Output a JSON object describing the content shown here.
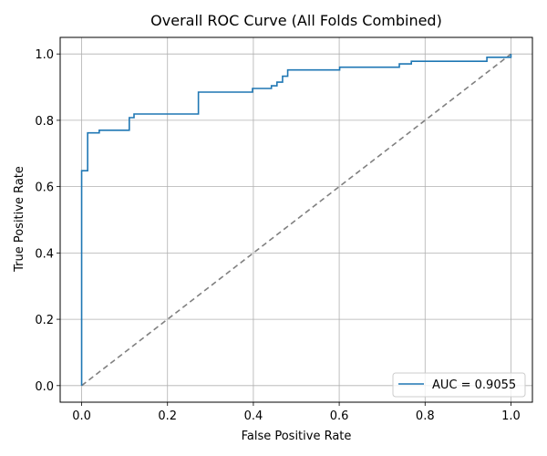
{
  "chart_data": {
    "type": "line",
    "title": "Overall ROC Curve (All Folds Combined)",
    "xlabel": "False Positive Rate",
    "ylabel": "True Positive Rate",
    "xlim": [
      -0.05,
      1.05
    ],
    "ylim": [
      -0.05,
      1.05
    ],
    "xticks": [
      0.0,
      0.2,
      0.4,
      0.6,
      0.8,
      1.0
    ],
    "yticks": [
      0.0,
      0.2,
      0.4,
      0.6,
      0.8,
      1.0
    ],
    "xtick_labels": [
      "0.0",
      "0.2",
      "0.4",
      "0.6",
      "0.8",
      "1.0"
    ],
    "ytick_labels": [
      "0.0",
      "0.2",
      "0.4",
      "0.6",
      "0.8",
      "1.0"
    ],
    "grid": true,
    "legend_position": "lower right",
    "series": [
      {
        "name": "AUC = 0.9055",
        "color": "#1f77b4",
        "style": "solid",
        "x": [
          0.0,
          0.0,
          0.007,
          0.007,
          0.014,
          0.014,
          0.041,
          0.041,
          0.111,
          0.111,
          0.122,
          0.122,
          0.272,
          0.272,
          0.398,
          0.398,
          0.442,
          0.442,
          0.455,
          0.455,
          0.468,
          0.468,
          0.48,
          0.48,
          0.601,
          0.601,
          0.74,
          0.74,
          0.768,
          0.768,
          0.944,
          0.944,
          1.0,
          1.0
        ],
        "y": [
          0.0,
          0.648,
          0.648,
          0.648,
          0.648,
          0.762,
          0.762,
          0.77,
          0.77,
          0.808,
          0.808,
          0.819,
          0.819,
          0.885,
          0.885,
          0.896,
          0.896,
          0.904,
          0.904,
          0.915,
          0.915,
          0.933,
          0.933,
          0.952,
          0.952,
          0.96,
          0.96,
          0.97,
          0.97,
          0.978,
          0.978,
          0.99,
          0.99,
          1.0
        ]
      },
      {
        "name": "",
        "color": "#808080",
        "style": "dashed",
        "x": [
          0.0,
          1.0
        ],
        "y": [
          0.0,
          1.0
        ]
      }
    ]
  }
}
